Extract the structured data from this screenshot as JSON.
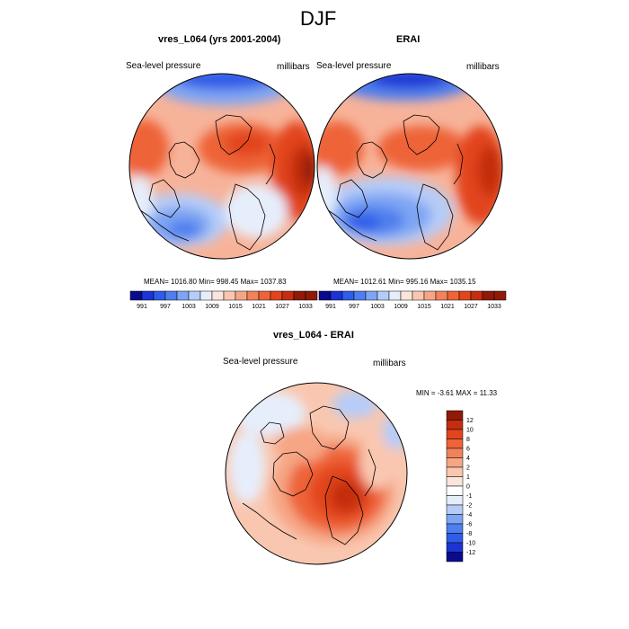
{
  "page": {
    "title": "DJF"
  },
  "palette": {
    "neg": [
      "#0a0a8c",
      "#1c34d4",
      "#2f5ce8",
      "#4f7fee",
      "#7ea5f3",
      "#b6ccf8",
      "#e6eefc"
    ],
    "pos": [
      "#fbe5db",
      "#f9c7b0",
      "#f6a685",
      "#f2825c",
      "#ee6338",
      "#e2441d",
      "#c42d10",
      "#8f1a07"
    ]
  },
  "panels": {
    "model": {
      "title": "vres_L064 (yrs 2001-2004)",
      "left_label": "Sea-level pressure",
      "right_label": "millibars",
      "stats": "MEAN= 1016.80  Min= 998.45  Max= 1037.83"
    },
    "obs": {
      "title": "ERAI",
      "left_label": "Sea-level pressure",
      "right_label": "millibars",
      "stats": "MEAN= 1012.61  Min= 995.16  Max= 1035.15"
    },
    "diff": {
      "title": "vres_L064 - ERAI",
      "left_label": "Sea-level pressure",
      "right_label": "millibars",
      "stats": "MIN =  -3.61 MAX =  11.33"
    }
  },
  "colorbar_top": {
    "ticks": [
      "991",
      "997",
      "1003",
      "1009",
      "1015",
      "1021",
      "1027",
      "1033"
    ]
  },
  "colorbar_diff": {
    "ticks": [
      "12",
      "10",
      "8",
      "6",
      "4",
      "2",
      "1",
      "0",
      "-1",
      "-2",
      "-4",
      "-6",
      "-8",
      "-10",
      "-12"
    ]
  }
}
